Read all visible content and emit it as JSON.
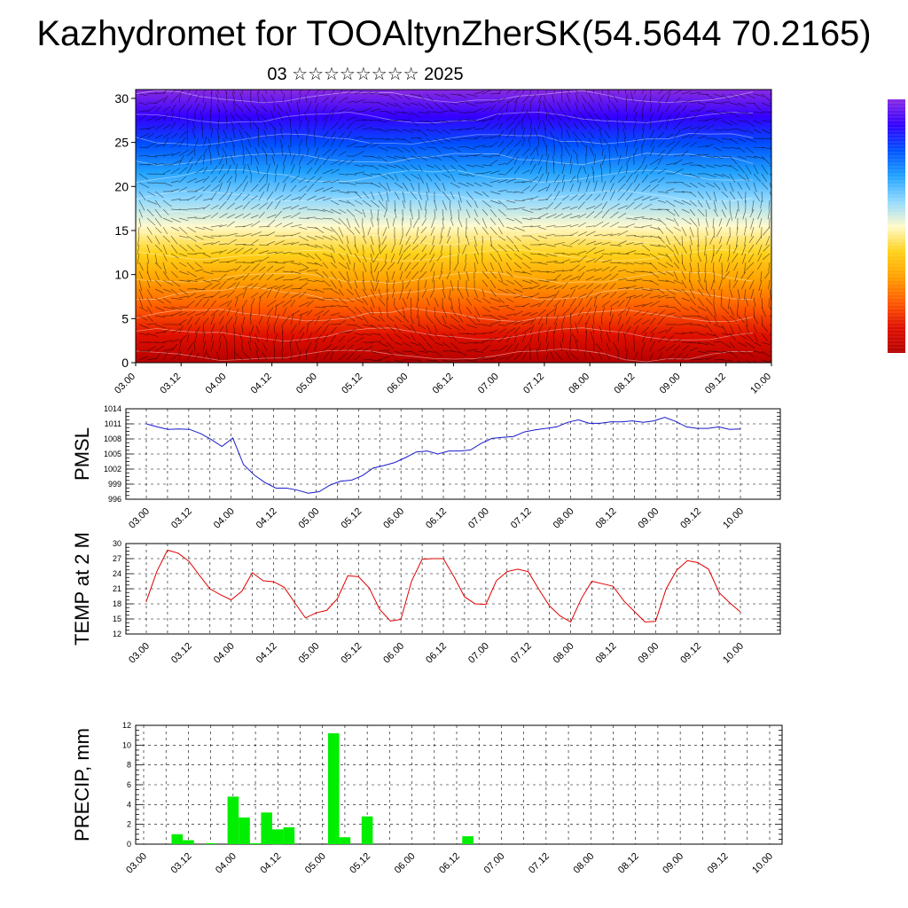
{
  "header": {
    "title": "Kazhydromet for TOOAltynZherSK(54.5644 70.2165)",
    "subtitle": "03 ☆☆☆☆☆☆☆☆ 2025"
  },
  "colors": {
    "pmsl_line": "#1a1acc",
    "temp_line": "#e00000",
    "precip_bar": "#00ee00",
    "grid": "#000000"
  },
  "chart_data": [
    {
      "id": "cross-section",
      "type": "heatmap",
      "title": "",
      "xlabel": "",
      "ylabel": "",
      "x_tick_labels": [
        "03.00",
        "03.12",
        "04.00",
        "04.12",
        "05.00",
        "05.12",
        "06.00",
        "06.12",
        "07.00",
        "07.12",
        "08.00",
        "08.12",
        "09.00",
        "09.12",
        "10.00"
      ],
      "y_ticks": [
        0,
        5,
        10,
        15,
        20,
        25,
        30
      ],
      "ylim": [
        0,
        31
      ],
      "colorscale": [
        "#8a2be2",
        "#3300ff",
        "#0050ff",
        "#1fa0ff",
        "#8fd8ff",
        "#fffacd",
        "#ffd21a",
        "#ffa000",
        "#ff5a00",
        "#e01000",
        "#b40000"
      ],
      "overlay": "wind barbs and isotherm contours",
      "colorbar": true
    },
    {
      "id": "pmsl",
      "type": "line",
      "ylabel": "PMSL",
      "x_tick_labels": [
        "03.00",
        "03.12",
        "04.00",
        "04.12",
        "05.00",
        "05.12",
        "06.00",
        "06.12",
        "07.00",
        "07.12",
        "08.00",
        "08.12",
        "09.00",
        "09.12",
        "10.00"
      ],
      "y_ticks": [
        996,
        999,
        1002,
        1005,
        1008,
        1011,
        1014
      ],
      "ylim": [
        996,
        1014
      ],
      "series": [
        {
          "values": [
            1011,
            1010.4,
            1009.9,
            1010,
            1009.9,
            1009.1,
            1007.9,
            1006.5,
            1008.2,
            1002.9,
            1000.8,
            999.3,
            998.2,
            998.2,
            997.8,
            997.2,
            997.5,
            998.8,
            999.6,
            999.8,
            1000.7,
            1002.2,
            1002.7,
            1003.3,
            1004.3,
            1005.4,
            1005.6,
            1005.0,
            1005.6,
            1005.6,
            1005.8,
            1007.1,
            1008.1,
            1008.3,
            1008.5,
            1009.4,
            1009.8,
            1010.1,
            1010.4,
            1011.3,
            1011.8,
            1011.1,
            1011.1,
            1011.4,
            1011.4,
            1011.6,
            1011.3,
            1011.6,
            1012.3,
            1011.5,
            1010.4,
            1010.1,
            1010.1,
            1010.4,
            1009.9,
            1010
          ]
        }
      ]
    },
    {
      "id": "temp2m",
      "type": "line",
      "ylabel": "TEMP at 2 M",
      "x_tick_labels": [
        "03.00",
        "03.12",
        "04.00",
        "04.12",
        "05.00",
        "05.12",
        "06.00",
        "06.12",
        "07.00",
        "07.12",
        "08.00",
        "08.12",
        "09.00",
        "09.12",
        "10.00"
      ],
      "y_ticks": [
        12,
        15,
        18,
        21,
        24,
        27,
        30
      ],
      "ylim": [
        12,
        30
      ],
      "series": [
        {
          "values": [
            18.5,
            24.5,
            28.7,
            28.1,
            26.5,
            23.7,
            21,
            19.8,
            18.8,
            20.5,
            24.2,
            22.6,
            22.4,
            21.3,
            18.2,
            15.2,
            16.2,
            16.7,
            19,
            23.6,
            23.4,
            21.2,
            16.9,
            14.6,
            14.9,
            22.5,
            26.9,
            27,
            27,
            23.4,
            19.4,
            18,
            17.9,
            22.6,
            24.4,
            24.9,
            24.4,
            20.9,
            17.6,
            15.6,
            14.4,
            19,
            22.5,
            22,
            21.5,
            18.6,
            16.5,
            14.4,
            14.5,
            21,
            24.7,
            26.6,
            26.2,
            24.9,
            20.2,
            18.2,
            16.4
          ]
        }
      ]
    },
    {
      "id": "precip",
      "type": "bar",
      "ylabel": "PRECIP, mm",
      "x_tick_labels": [
        "03.00",
        "03.12",
        "04.00",
        "04.12",
        "05.00",
        "05.12",
        "06.00",
        "06.12",
        "07.00",
        "07.12",
        "08.00",
        "08.12",
        "09.00",
        "09.12",
        "10.00"
      ],
      "y_ticks": [
        0,
        2,
        4,
        6,
        8,
        10,
        12
      ],
      "ylim": [
        0,
        12
      ],
      "series": [
        {
          "values": [
            0,
            0,
            0,
            1,
            0.4,
            0,
            0.1,
            0,
            4.8,
            2.7,
            0.1,
            3.2,
            1.5,
            1.7,
            0,
            0,
            0,
            11.2,
            0.7,
            0,
            2.8,
            0,
            0,
            0,
            0,
            0,
            0,
            0,
            0,
            0.8,
            0,
            0,
            0,
            0,
            0,
            0,
            0,
            0,
            0,
            0,
            0,
            0,
            0,
            0,
            0,
            0,
            0,
            0,
            0,
            0,
            0,
            0,
            0,
            0,
            0,
            0,
            0
          ]
        }
      ]
    }
  ]
}
